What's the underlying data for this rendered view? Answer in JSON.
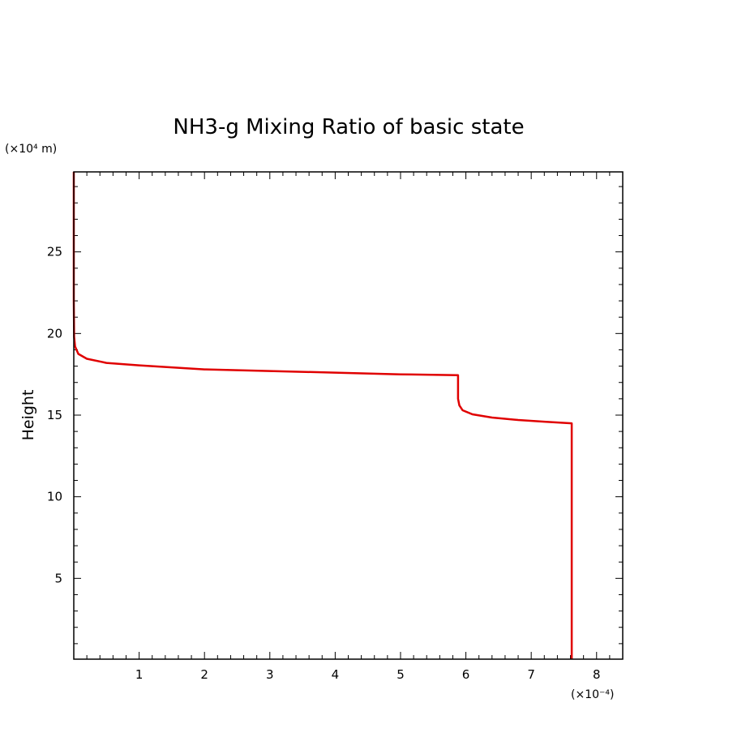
{
  "chart_data": {
    "type": "line",
    "title": "NH3-g Mixing Ratio of basic state",
    "xlabel": "",
    "ylabel": "Height",
    "x_unit": "(×10⁻⁴)",
    "y_unit": "(×10⁴ m)",
    "xlim": [
      0,
      8.4
    ],
    "ylim": [
      0.05,
      29.9
    ],
    "x_ticks": [
      1,
      2,
      3,
      4,
      5,
      6,
      7,
      8
    ],
    "x_tick_labels": [
      "1",
      "2",
      "3",
      "4",
      "5",
      "6",
      "7",
      "8"
    ],
    "y_ticks": [
      5,
      10,
      15,
      20,
      25
    ],
    "y_tick_labels": [
      "5",
      "10",
      "15",
      "20",
      "25"
    ],
    "grid": false,
    "legend": "none",
    "series": [
      {
        "color": "#e00000",
        "x": [
          7.62,
          7.62,
          7.62,
          7.2,
          6.8,
          6.4,
          6.1,
          5.95,
          5.9,
          5.88,
          5.88,
          5.0,
          4.0,
          3.0,
          2.0,
          1.0,
          0.5,
          0.2,
          0.07,
          0.02,
          0.005,
          0.0,
          0.0
        ],
        "y": [
          0.05,
          10.0,
          14.5,
          14.6,
          14.7,
          14.85,
          15.05,
          15.3,
          15.6,
          16.0,
          17.45,
          17.5,
          17.6,
          17.7,
          17.8,
          18.05,
          18.2,
          18.45,
          18.75,
          19.2,
          19.8,
          22.0,
          29.9
        ]
      }
    ]
  }
}
